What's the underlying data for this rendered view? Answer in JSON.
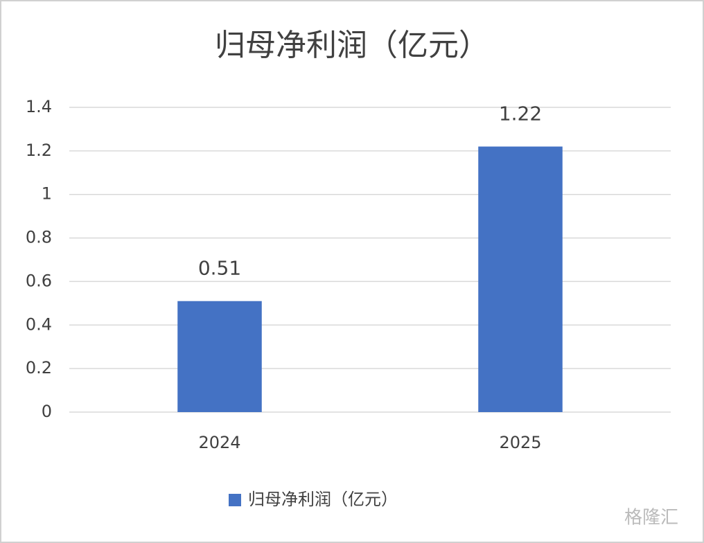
{
  "chart_data": {
    "type": "bar",
    "title": "归母净利润（亿元）",
    "categories": [
      "2024",
      "2025"
    ],
    "series": [
      {
        "name": "归母净利润（亿元）",
        "color": "#4472c4",
        "values": [
          0.51,
          1.22
        ]
      }
    ],
    "ylim": [
      0,
      1.4
    ],
    "yticks": [
      0,
      0.2,
      0.4,
      0.6,
      0.8,
      1,
      1.2,
      1.4
    ],
    "grid": true,
    "legend": "bottom"
  },
  "watermark": "格隆汇"
}
